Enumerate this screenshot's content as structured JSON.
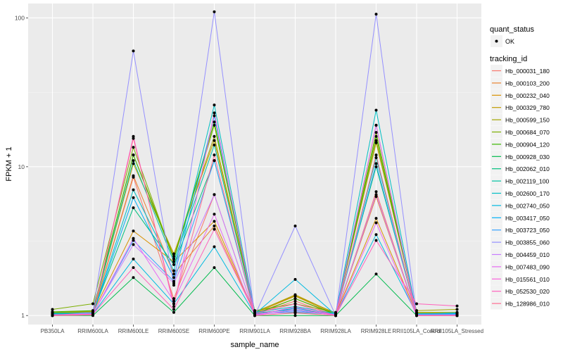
{
  "chart_data": {
    "type": "line",
    "title": "",
    "xlabel": "sample_name",
    "ylabel": "FPKM + 1",
    "yscale": "log10",
    "ylim": [
      0.87,
      125
    ],
    "yticks": [
      1,
      10,
      100
    ],
    "ytick_labels": [
      "1",
      "10",
      "100"
    ],
    "grid": true,
    "legend_position": "right",
    "categories": [
      "PB350LA",
      "RRIM600LA",
      "RRIM600LE",
      "RRIM600SE",
      "RRIM600PE",
      "RRIM901LA",
      "RRIM928BA",
      "RRIM928LA",
      "RRIM928LE",
      "RRII105LA_Control",
      "RRII105LA_Stressed"
    ],
    "legend_shape": {
      "title": "quant_status",
      "entries": [
        "OK"
      ]
    },
    "legend_color_title": "tracking_id",
    "series": [
      {
        "name": "Hb_000031_180",
        "color": "#F8766D",
        "values": [
          1.02,
          1.03,
          8.5,
          1.3,
          6.5,
          1.02,
          1.25,
          1.0,
          6.8,
          1.02,
          1.0
        ]
      },
      {
        "name": "Hb_000103_200",
        "color": "#EA8331",
        "values": [
          1.03,
          1.04,
          8.7,
          1.9,
          4.0,
          1.03,
          1.3,
          1.01,
          6.3,
          1.02,
          1.01
        ]
      },
      {
        "name": "Hb_000232_040",
        "color": "#D89000",
        "values": [
          1.04,
          1.05,
          3.7,
          2.3,
          4.3,
          1.04,
          1.35,
          1.02,
          4.5,
          1.03,
          1.02
        ]
      },
      {
        "name": "Hb_000329_780",
        "color": "#C09B00",
        "values": [
          1.05,
          1.06,
          10.5,
          2.6,
          15.0,
          1.05,
          1.38,
          1.03,
          15.0,
          1.04,
          1.04
        ]
      },
      {
        "name": "Hb_000599_150",
        "color": "#A3A500",
        "values": [
          1.05,
          1.07,
          12.0,
          2.5,
          16.0,
          1.06,
          1.36,
          1.04,
          14.5,
          1.08,
          1.1
        ]
      },
      {
        "name": "Hb_000684_070",
        "color": "#7CAE00",
        "values": [
          1.1,
          1.2,
          13.5,
          2.4,
          19.0,
          1.08,
          1.2,
          1.05,
          17.0,
          1.05,
          1.05
        ]
      },
      {
        "name": "Hb_000904_120",
        "color": "#39B600",
        "values": [
          1.06,
          1.08,
          12.0,
          2.4,
          20.0,
          1.02,
          1.3,
          1.02,
          16.0,
          1.03,
          1.03
        ]
      },
      {
        "name": "Hb_000928_030",
        "color": "#00BB4E",
        "values": [
          1.0,
          1.0,
          1.8,
          1.05,
          2.1,
          1.0,
          1.0,
          1.0,
          1.9,
          1.0,
          1.0
        ]
      },
      {
        "name": "Hb_002062_010",
        "color": "#00BF7D",
        "values": [
          1.04,
          1.04,
          5.3,
          2.2,
          11.0,
          1.03,
          1.05,
          1.02,
          10.0,
          1.02,
          1.02
        ]
      },
      {
        "name": "Hb_002119_100",
        "color": "#00C1A3",
        "values": [
          1.03,
          1.05,
          11.0,
          2.3,
          14.0,
          1.04,
          1.1,
          1.02,
          11.5,
          1.02,
          1.02
        ]
      },
      {
        "name": "Hb_002600_170",
        "color": "#00BFC4",
        "values": [
          1.02,
          1.03,
          7.0,
          2.0,
          26.0,
          1.05,
          1.15,
          1.03,
          24.0,
          1.03,
          1.03
        ]
      },
      {
        "name": "Hb_002740_050",
        "color": "#00BAE0",
        "values": [
          1.01,
          1.02,
          2.4,
          1.2,
          2.9,
          1.02,
          1.75,
          1.01,
          3.5,
          1.02,
          1.03
        ]
      },
      {
        "name": "Hb_003417_050",
        "color": "#00B0F6",
        "values": [
          1.02,
          1.03,
          6.2,
          1.8,
          22.0,
          1.02,
          1.12,
          1.02,
          19.0,
          1.02,
          1.04
        ]
      },
      {
        "name": "Hb_003723_050",
        "color": "#35A2FF",
        "values": [
          1.01,
          1.02,
          3.2,
          1.7,
          11.0,
          1.01,
          1.08,
          1.01,
          10.5,
          1.01,
          1.02
        ]
      },
      {
        "name": "Hb_003855_060",
        "color": "#9590FF",
        "values": [
          1.0,
          1.05,
          60.0,
          1.6,
          110.0,
          1.0,
          4.0,
          1.0,
          106.0,
          1.01,
          1.0
        ]
      },
      {
        "name": "Hb_004459_010",
        "color": "#C77CFF",
        "values": [
          1.01,
          1.03,
          3.0,
          1.65,
          6.5,
          1.02,
          1.06,
          1.02,
          6.5,
          1.01,
          1.01
        ]
      },
      {
        "name": "Hb_007483_090",
        "color": "#E76BF3",
        "values": [
          1.0,
          1.02,
          3.3,
          1.25,
          4.8,
          1.0,
          1.1,
          1.0,
          4.2,
          1.0,
          1.0
        ]
      },
      {
        "name": "Hb_015561_010",
        "color": "#FA62DB",
        "values": [
          1.0,
          1.01,
          16.0,
          1.15,
          23.0,
          1.01,
          1.14,
          1.0,
          19.0,
          1.0,
          1.0
        ]
      },
      {
        "name": "Hb_052530_020",
        "color": "#FF62BC",
        "values": [
          1.01,
          1.02,
          2.1,
          1.1,
          3.8,
          1.03,
          1.2,
          1.0,
          3.2,
          1.2,
          1.16
        ]
      },
      {
        "name": "Hb_128986_010",
        "color": "#FF6C91",
        "values": [
          1.0,
          1.01,
          15.5,
          1.2,
          12.0,
          1.0,
          1.04,
          1.0,
          12.0,
          1.0,
          1.0
        ]
      }
    ]
  }
}
